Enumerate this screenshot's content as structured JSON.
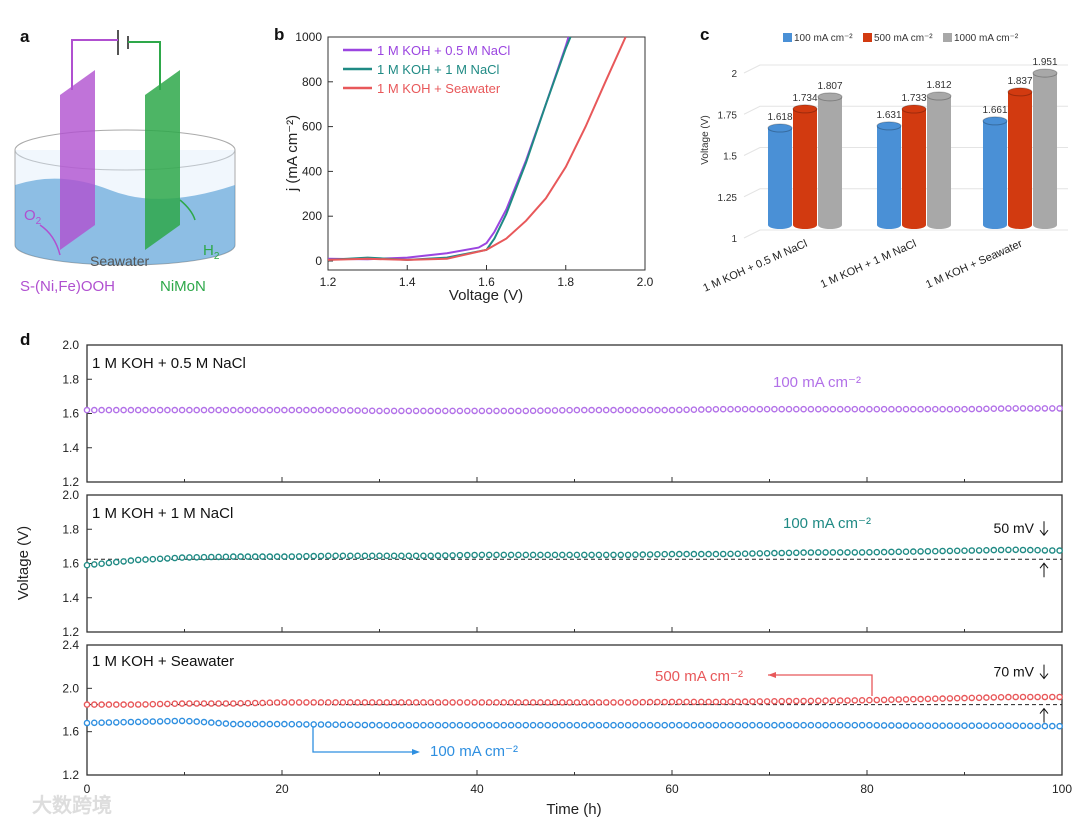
{
  "panels": {
    "a": "a",
    "b": "b",
    "c": "c",
    "d": "d"
  },
  "schematic": {
    "anode_label": "S-(Ni,Fe)OOH",
    "cathode_label": "NiMoN",
    "electrolyte_label": "Seawater",
    "o2_label": "O",
    "o2_sub": "2",
    "h2_label": "H",
    "h2_sub": "2",
    "colors": {
      "anode": "#b050d0",
      "cathode": "#2ea84a",
      "water": "#3a8fd0"
    }
  },
  "watermark": "大数跨境",
  "chart_data": [
    {
      "id": "b",
      "type": "line",
      "xlabel": "Voltage (V)",
      "ylabel": "j (mA cm⁻²)",
      "xlim": [
        1.2,
        2.0
      ],
      "ylim": [
        -40,
        1000
      ],
      "xticks": [
        "1.2",
        "1.4",
        "1.6",
        "1.8",
        "2.0"
      ],
      "yticks": [
        "0",
        "200",
        "400",
        "600",
        "800",
        "1000"
      ],
      "legend_position": "top-left",
      "series": [
        {
          "name": "1 M KOH + 0.5 M NaCl",
          "color": "#9b45e0",
          "x": [
            1.2,
            1.3,
            1.4,
            1.5,
            1.58,
            1.6,
            1.62,
            1.65,
            1.7,
            1.75,
            1.8,
            1.807
          ],
          "y": [
            10,
            8,
            15,
            35,
            60,
            80,
            130,
            230,
            450,
            700,
            960,
            1000
          ]
        },
        {
          "name": "1 M KOH + 1 M NaCl",
          "color": "#1f8a84",
          "x": [
            1.2,
            1.3,
            1.4,
            1.5,
            1.6,
            1.62,
            1.65,
            1.7,
            1.75,
            1.8,
            1.812
          ],
          "y": [
            5,
            15,
            5,
            15,
            50,
            100,
            210,
            440,
            700,
            950,
            1000
          ]
        },
        {
          "name": "1 M KOH + Seawater",
          "color": "#e8585a",
          "x": [
            1.2,
            1.3,
            1.4,
            1.5,
            1.6,
            1.65,
            1.7,
            1.75,
            1.8,
            1.85,
            1.9,
            1.951
          ],
          "y": [
            5,
            10,
            5,
            10,
            50,
            100,
            180,
            280,
            420,
            600,
            800,
            1000
          ]
        }
      ]
    },
    {
      "id": "c",
      "type": "bar",
      "ylabel": "Voltage (V)",
      "ylim": [
        1,
        2
      ],
      "yticks": [
        "1",
        "1.25",
        "1.5",
        "1.75",
        "2"
      ],
      "categories": [
        "1 M KOH + 0.5 M NaCl",
        "1 M KOH + 1 M NaCl",
        "1 M KOH + Seawater"
      ],
      "legend_position": "top",
      "series": [
        {
          "name": "100 mA cm⁻²",
          "color": "#4a90d6",
          "values": [
            1.618,
            1.631,
            1.661
          ],
          "labels": [
            "1.618",
            "1.631",
            "1.661"
          ]
        },
        {
          "name": "500 mA cm⁻²",
          "color": "#d23a10",
          "values": [
            1.734,
            1.733,
            1.837
          ],
          "labels": [
            "1.734",
            "1.733",
            "1.837"
          ]
        },
        {
          "name": "1000 mA cm⁻²",
          "color": "#a8a8a8",
          "values": [
            1.807,
            1.812,
            1.951
          ],
          "labels": [
            "1.807",
            "1.812",
            "1.951"
          ]
        }
      ]
    },
    {
      "id": "d",
      "type": "scatter",
      "xlabel": "Time (h)",
      "ylabel": "Voltage (V)",
      "xlim": [
        0,
        100
      ],
      "xticks": [
        "0",
        "20",
        "40",
        "60",
        "80",
        "100"
      ],
      "x": [
        0,
        5,
        10,
        15,
        20,
        25,
        30,
        35,
        40,
        45,
        50,
        55,
        60,
        65,
        70,
        75,
        80,
        85,
        90,
        95,
        100
      ],
      "subplots": [
        {
          "title": "1 M KOH + 0.5 M NaCl",
          "ylim": [
            1.2,
            2.0
          ],
          "yticks": [
            "1.2",
            "1.4",
            "1.6",
            "1.8",
            "2.0"
          ],
          "series": [
            {
              "name": "100 mA cm⁻²",
              "color": "#b270e8",
              "values": [
                1.62,
                1.62,
                1.62,
                1.62,
                1.62,
                1.62,
                1.615,
                1.615,
                1.615,
                1.615,
                1.62,
                1.62,
                1.62,
                1.625,
                1.625,
                1.625,
                1.625,
                1.625,
                1.625,
                1.63,
                1.63
              ]
            }
          ]
        },
        {
          "title": "1 M KOH + 1 M NaCl",
          "ylim": [
            1.2,
            2.0
          ],
          "yticks": [
            "1.2",
            "1.4",
            "1.6",
            "1.8",
            "2.0"
          ],
          "reference": 1.625,
          "delta_label": "50 mV",
          "series": [
            {
              "name": "100 mA cm⁻²",
              "color": "#1f8a84",
              "values": [
                1.59,
                1.62,
                1.635,
                1.64,
                1.64,
                1.645,
                1.645,
                1.645,
                1.65,
                1.65,
                1.65,
                1.65,
                1.655,
                1.655,
                1.66,
                1.665,
                1.665,
                1.67,
                1.675,
                1.68,
                1.675
              ]
            }
          ]
        },
        {
          "title": "1 M KOH + Seawater",
          "ylim": [
            1.2,
            2.4
          ],
          "yticks": [
            "1.2",
            "1.6",
            "2.0",
            "2.4"
          ],
          "reference": 1.85,
          "delta_label": "70 mV",
          "series": [
            {
              "name": "500 mA cm⁻²",
              "color": "#e8585a",
              "values": [
                1.85,
                1.85,
                1.86,
                1.86,
                1.87,
                1.87,
                1.87,
                1.87,
                1.87,
                1.87,
                1.87,
                1.87,
                1.875,
                1.875,
                1.88,
                1.885,
                1.89,
                1.9,
                1.91,
                1.92,
                1.92
              ]
            },
            {
              "name": "100 mA cm⁻²",
              "color": "#2e8fe0",
              "values": [
                1.68,
                1.69,
                1.7,
                1.67,
                1.67,
                1.665,
                1.66,
                1.66,
                1.66,
                1.66,
                1.66,
                1.66,
                1.66,
                1.66,
                1.66,
                1.66,
                1.66,
                1.655,
                1.655,
                1.655,
                1.65
              ]
            }
          ]
        }
      ]
    }
  ]
}
